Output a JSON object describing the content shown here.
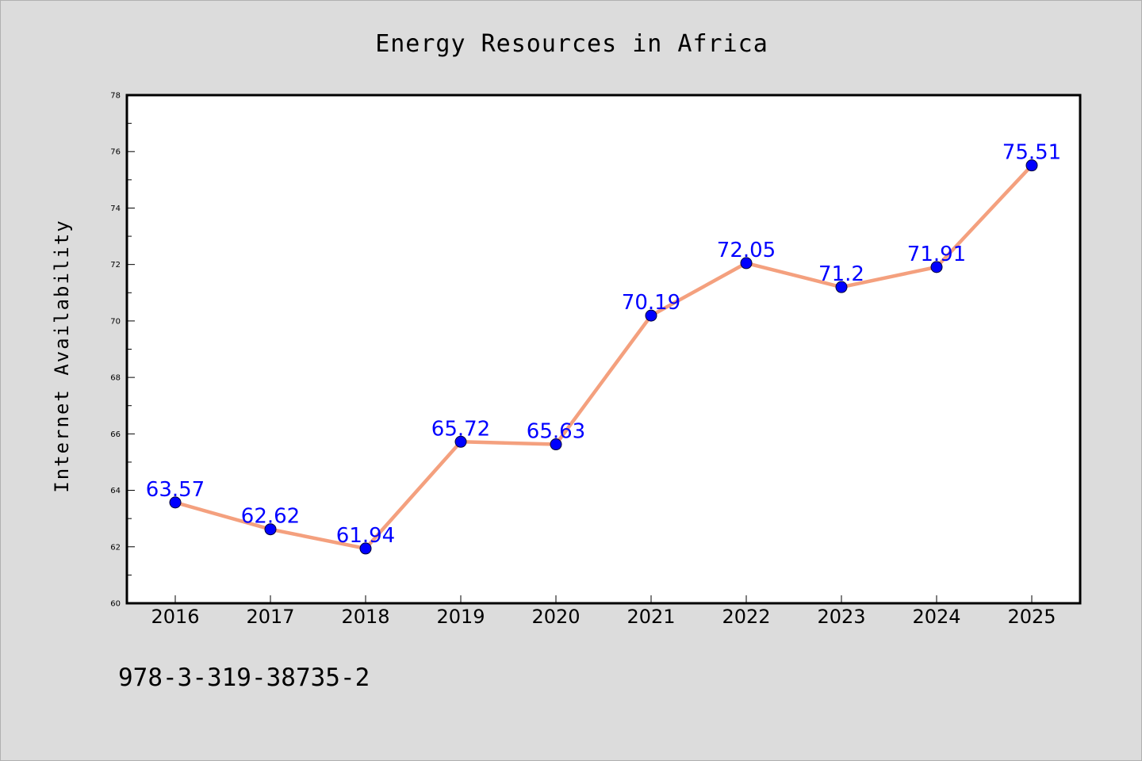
{
  "chart_data": {
    "type": "line",
    "title": "Energy Resources in Africa",
    "xlabel": "",
    "ylabel": "Internet Availability",
    "categories": [
      "2016",
      "2017",
      "2018",
      "2019",
      "2020",
      "2021",
      "2022",
      "2023",
      "2024",
      "2025"
    ],
    "series": [
      {
        "values": [
          63.57,
          62.62,
          61.94,
          65.72,
          65.63,
          70.19,
          72.05,
          71.2,
          71.91,
          75.51
        ],
        "data_labels": [
          "63.57",
          "62.62",
          "61.94",
          "65.72",
          "65.63",
          "70.19",
          "72.05",
          "71.2",
          "71.91",
          "75.51"
        ]
      }
    ],
    "ylim": [
      60,
      78
    ],
    "yticks": [
      "60",
      "62",
      "64",
      "66",
      "68",
      "70",
      "72",
      "74",
      "76",
      "78"
    ],
    "grid": false,
    "legend": "none",
    "line_color": "#f4a07e",
    "marker_color": "#0000ff",
    "label_color": "#0000ff"
  },
  "footer": {
    "isbn": "978-3-319-38735-2"
  }
}
